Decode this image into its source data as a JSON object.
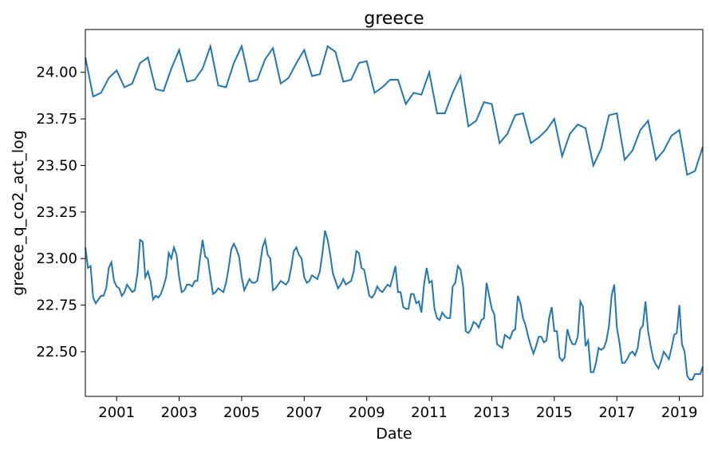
{
  "chart_data": {
    "type": "line",
    "title": "greece",
    "xlabel": "Date",
    "ylabel": "greece_q_co2_act_log",
    "xlim": [
      2000,
      2019.75
    ],
    "ylim": [
      22.26,
      24.23
    ],
    "xticks": [
      2001,
      2003,
      2005,
      2007,
      2009,
      2011,
      2013,
      2015,
      2017,
      2019
    ],
    "yticks": [
      {
        "value": 22.5,
        "label": "22.50"
      },
      {
        "value": 22.75,
        "label": "22.75"
      },
      {
        "value": 23.0,
        "label": "23.00"
      },
      {
        "value": 23.25,
        "label": "23.25"
      },
      {
        "value": 23.5,
        "label": "23.50"
      },
      {
        "value": 23.75,
        "label": "23.75"
      },
      {
        "value": 24.0,
        "label": "24.00"
      }
    ],
    "series": [
      {
        "color": "#1f77b4",
        "x": [
          2000,
          2000.25,
          2000.5,
          2000.75,
          2001,
          2001.25,
          2001.5,
          2001.75,
          2002,
          2002.25,
          2002.5,
          2002.75,
          2003,
          2003.25,
          2003.5,
          2003.75,
          2004,
          2004.25,
          2004.5,
          2004.75,
          2005,
          2005.25,
          2005.5,
          2005.75,
          2006,
          2006.25,
          2006.5,
          2006.75,
          2007,
          2007.25,
          2007.5,
          2007.75,
          2008,
          2008.25,
          2008.5,
          2008.75,
          2009,
          2009.25,
          2009.5,
          2009.75,
          2010,
          2010.25,
          2010.5,
          2010.75,
          2011,
          2011.25,
          2011.5,
          2011.75,
          2012,
          2012.25,
          2012.5,
          2012.75,
          2013,
          2013.25,
          2013.5,
          2013.75,
          2014,
          2014.25,
          2014.5,
          2014.75,
          2015,
          2015.25,
          2015.5,
          2015.75,
          2016,
          2016.25,
          2016.5,
          2016.75,
          2017,
          2017.25,
          2017.5,
          2017.75,
          2018,
          2018.25,
          2018.5,
          2018.75,
          2019,
          2019.25,
          2019.5,
          2019.75
        ],
        "values": [
          24.08,
          23.87,
          23.89,
          23.97,
          24.01,
          23.92,
          23.94,
          24.05,
          24.08,
          23.91,
          23.9,
          24.02,
          24.12,
          23.95,
          23.96,
          24.02,
          24.14,
          23.93,
          23.92,
          24.05,
          24.14,
          23.95,
          23.96,
          24.07,
          24.13,
          23.94,
          23.97,
          24.05,
          24.12,
          23.98,
          23.99,
          24.14,
          24.11,
          23.95,
          23.96,
          24.05,
          24.06,
          23.89,
          23.92,
          23.96,
          23.96,
          23.83,
          23.89,
          23.88,
          24.0,
          23.78,
          23.78,
          23.89,
          23.98,
          23.71,
          23.74,
          23.84,
          23.83,
          23.62,
          23.67,
          23.77,
          23.78,
          23.62,
          23.65,
          23.69,
          23.75,
          23.55,
          23.67,
          23.72,
          23.7,
          23.5,
          23.59,
          23.77,
          23.78,
          23.53,
          23.58,
          23.69,
          23.74,
          23.53,
          23.58,
          23.66,
          23.69,
          23.45,
          23.47,
          23.6
        ]
      },
      {
        "color": "#1f77b4",
        "x": [
          2000,
          2000.083,
          2000.167,
          2000.25,
          2000.333,
          2000.417,
          2000.5,
          2000.583,
          2000.667,
          2000.75,
          2000.833,
          2000.917,
          2001,
          2001.083,
          2001.167,
          2001.25,
          2001.333,
          2001.417,
          2001.5,
          2001.583,
          2001.667,
          2001.75,
          2001.833,
          2001.917,
          2002,
          2002.083,
          2002.167,
          2002.25,
          2002.333,
          2002.417,
          2002.5,
          2002.583,
          2002.667,
          2002.75,
          2002.833,
          2002.917,
          2003,
          2003.083,
          2003.167,
          2003.25,
          2003.333,
          2003.417,
          2003.5,
          2003.583,
          2003.667,
          2003.75,
          2003.833,
          2003.917,
          2004,
          2004.083,
          2004.167,
          2004.25,
          2004.333,
          2004.417,
          2004.5,
          2004.583,
          2004.667,
          2004.75,
          2004.833,
          2004.917,
          2005,
          2005.083,
          2005.167,
          2005.25,
          2005.333,
          2005.417,
          2005.5,
          2005.583,
          2005.667,
          2005.75,
          2005.833,
          2005.917,
          2006,
          2006.083,
          2006.167,
          2006.25,
          2006.333,
          2006.417,
          2006.5,
          2006.583,
          2006.667,
          2006.75,
          2006.833,
          2006.917,
          2007,
          2007.083,
          2007.167,
          2007.25,
          2007.333,
          2007.417,
          2007.5,
          2007.583,
          2007.667,
          2007.75,
          2007.833,
          2007.917,
          2008,
          2008.083,
          2008.167,
          2008.25,
          2008.333,
          2008.417,
          2008.5,
          2008.583,
          2008.667,
          2008.75,
          2008.833,
          2008.917,
          2009,
          2009.083,
          2009.167,
          2009.25,
          2009.333,
          2009.417,
          2009.5,
          2009.583,
          2009.667,
          2009.75,
          2009.833,
          2009.917,
          2010,
          2010.083,
          2010.167,
          2010.25,
          2010.333,
          2010.417,
          2010.5,
          2010.583,
          2010.667,
          2010.75,
          2010.833,
          2010.917,
          2011,
          2011.083,
          2011.167,
          2011.25,
          2011.333,
          2011.417,
          2011.5,
          2011.583,
          2011.667,
          2011.75,
          2011.833,
          2011.917,
          2012,
          2012.083,
          2012.167,
          2012.25,
          2012.333,
          2012.417,
          2012.5,
          2012.583,
          2012.667,
          2012.75,
          2012.833,
          2012.917,
          2013,
          2013.083,
          2013.167,
          2013.25,
          2013.333,
          2013.417,
          2013.5,
          2013.583,
          2013.667,
          2013.75,
          2013.833,
          2013.917,
          2014,
          2014.083,
          2014.167,
          2014.25,
          2014.333,
          2014.417,
          2014.5,
          2014.583,
          2014.667,
          2014.75,
          2014.833,
          2014.917,
          2015,
          2015.083,
          2015.167,
          2015.25,
          2015.333,
          2015.417,
          2015.5,
          2015.583,
          2015.667,
          2015.75,
          2015.833,
          2015.917,
          2016,
          2016.083,
          2016.167,
          2016.25,
          2016.333,
          2016.417,
          2016.5,
          2016.583,
          2016.667,
          2016.75,
          2016.833,
          2016.917,
          2017,
          2017.083,
          2017.167,
          2017.25,
          2017.333,
          2017.417,
          2017.5,
          2017.583,
          2017.667,
          2017.75,
          2017.833,
          2017.917,
          2018,
          2018.083,
          2018.167,
          2018.25,
          2018.333,
          2018.417,
          2018.5,
          2018.583,
          2018.667,
          2018.75,
          2018.833,
          2018.917,
          2019,
          2019.083,
          2019.167,
          2019.25,
          2019.333,
          2019.417,
          2019.5,
          2019.583,
          2019.667,
          2019.75
        ],
        "values": [
          23.06,
          22.95,
          22.96,
          22.79,
          22.76,
          22.78,
          22.8,
          22.8,
          22.84,
          22.95,
          22.98,
          22.88,
          22.85,
          22.84,
          22.8,
          22.82,
          22.86,
          22.84,
          22.82,
          22.83,
          22.92,
          23.1,
          23.09,
          22.9,
          22.93,
          22.88,
          22.78,
          22.8,
          22.79,
          22.81,
          22.85,
          22.9,
          23.03,
          23.0,
          23.06,
          23.02,
          22.9,
          22.82,
          22.83,
          22.86,
          22.86,
          22.85,
          22.88,
          22.88,
          23.0,
          23.1,
          23.01,
          23.0,
          22.9,
          22.81,
          22.82,
          22.84,
          22.83,
          22.82,
          22.87,
          22.95,
          23.05,
          23.08,
          23.05,
          23.01,
          22.9,
          22.83,
          22.86,
          22.89,
          22.87,
          22.87,
          22.88,
          22.96,
          23.06,
          23.1,
          23.02,
          23.0,
          22.83,
          22.84,
          22.86,
          22.88,
          22.87,
          22.86,
          22.88,
          22.95,
          23.04,
          23.06,
          23.02,
          23.0,
          22.9,
          22.87,
          22.88,
          22.91,
          22.9,
          22.89,
          22.93,
          23.03,
          23.15,
          23.1,
          23.02,
          22.92,
          22.88,
          22.84,
          22.86,
          22.89,
          22.86,
          22.87,
          22.88,
          22.93,
          23.04,
          23.03,
          22.95,
          22.94,
          22.87,
          22.8,
          22.79,
          22.81,
          22.85,
          22.83,
          22.82,
          22.84,
          22.86,
          22.85,
          22.9,
          22.96,
          22.82,
          22.82,
          22.74,
          22.73,
          22.73,
          22.81,
          22.81,
          22.76,
          22.77,
          22.71,
          22.86,
          22.95,
          22.87,
          22.88,
          22.73,
          22.68,
          22.67,
          22.71,
          22.69,
          22.68,
          22.68,
          22.85,
          22.87,
          22.96,
          22.94,
          22.85,
          22.61,
          22.6,
          22.62,
          22.66,
          22.65,
          22.63,
          22.67,
          22.68,
          22.87,
          22.8,
          22.73,
          22.7,
          22.54,
          22.53,
          22.52,
          22.59,
          22.58,
          22.57,
          22.61,
          22.62,
          22.8,
          22.76,
          22.68,
          22.64,
          22.58,
          22.53,
          22.49,
          22.53,
          22.58,
          22.58,
          22.55,
          22.56,
          22.68,
          22.74,
          22.61,
          22.61,
          22.47,
          22.45,
          22.47,
          22.62,
          22.57,
          22.54,
          22.54,
          22.58,
          22.77,
          22.74,
          22.53,
          22.56,
          22.39,
          22.39,
          22.44,
          22.52,
          22.51,
          22.52,
          22.56,
          22.64,
          22.8,
          22.86,
          22.63,
          22.55,
          22.44,
          22.44,
          22.46,
          22.49,
          22.5,
          22.48,
          22.52,
          22.62,
          22.64,
          22.77,
          22.61,
          22.53,
          22.46,
          22.43,
          22.41,
          22.45,
          22.5,
          22.48,
          22.46,
          22.52,
          22.59,
          22.6,
          22.75,
          22.54,
          22.5,
          22.37,
          22.35,
          22.35,
          22.38,
          22.38,
          22.38,
          22.42
        ]
      }
    ]
  }
}
